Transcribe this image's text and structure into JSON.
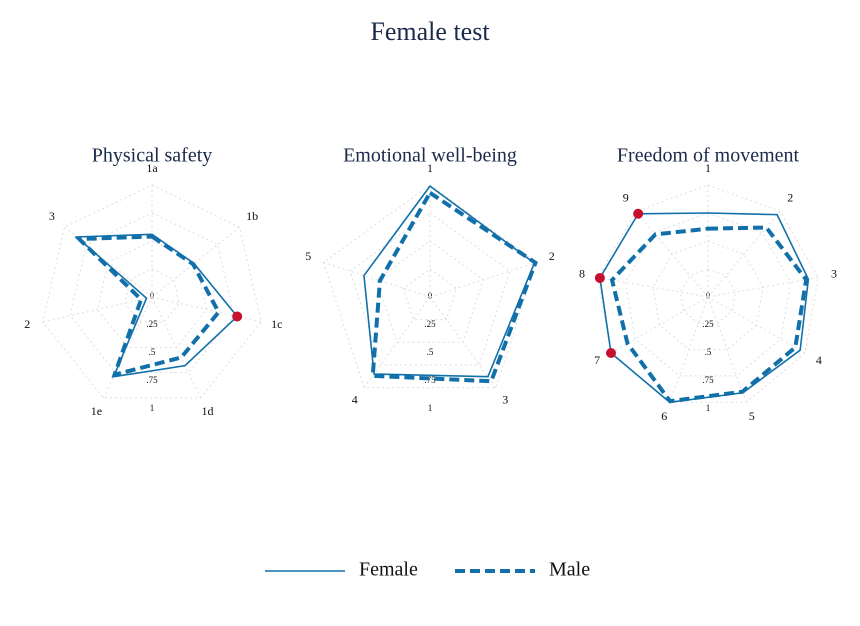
{
  "header": {
    "title": "Female test"
  },
  "chart_data": [
    {
      "type": "radar",
      "title": "Physical safety",
      "categories": [
        "1a",
        "1b",
        "1c",
        "1d",
        "1e",
        "2",
        "3"
      ],
      "rlim": [
        0,
        1
      ],
      "rticks": [
        0,
        {
          "value": 0.25,
          "label": ".25"
        },
        {
          "value": 0.5,
          "label": ".5"
        },
        {
          "value": 0.75,
          "label": ".75"
        },
        1
      ],
      "highlight_color": "#c8102e",
      "series": [
        {
          "name": "Female",
          "color": "#1170aa",
          "style": "solid",
          "values": [
            0.56,
            0.48,
            0.78,
            0.68,
            0.79,
            0.05,
            0.86
          ],
          "highlight": [
            2
          ]
        },
        {
          "name": "Male",
          "color": "#1170aa",
          "style": "dashed",
          "values": [
            0.54,
            0.47,
            0.61,
            0.6,
            0.77,
            0.1,
            0.83
          ]
        }
      ]
    },
    {
      "type": "radar",
      "title": "Emotional well-being",
      "categories": [
        "1",
        "2",
        "3",
        "4",
        "5"
      ],
      "rlim": [
        0,
        1
      ],
      "rticks": [
        0,
        {
          "value": 0.25,
          "label": ".25"
        },
        {
          "value": 0.5,
          "label": ".5"
        },
        {
          "value": 0.75,
          "label": ".75"
        },
        1
      ],
      "highlight_color": "#c8102e",
      "series": [
        {
          "name": "Female",
          "color": "#1170aa",
          "style": "solid",
          "values": [
            0.99,
            0.98,
            0.88,
            0.85,
            0.62
          ],
          "highlight": []
        },
        {
          "name": "Male",
          "color": "#1170aa",
          "style": "dashed",
          "values": [
            0.93,
            0.99,
            0.93,
            0.87,
            0.47
          ]
        }
      ]
    },
    {
      "type": "radar",
      "title": "Freedom of movement",
      "categories": [
        "1",
        "2",
        "3",
        "4",
        "5",
        "6",
        "7",
        "8",
        "9"
      ],
      "rlim": [
        0,
        1
      ],
      "rticks": [
        0,
        {
          "value": 0.25,
          "label": ".25"
        },
        {
          "value": 0.5,
          "label": ".5"
        },
        {
          "value": 0.75,
          "label": ".75"
        },
        1
      ],
      "highlight_color": "#c8102e",
      "series": [
        {
          "name": "Female",
          "color": "#1170aa",
          "style": "solid",
          "values": [
            0.75,
            0.96,
            0.91,
            0.95,
            0.91,
            1.0,
            1.0,
            0.98,
            0.97
          ],
          "highlight": [
            6,
            7,
            8
          ]
        },
        {
          "name": "Male",
          "color": "#1170aa",
          "style": "dashed",
          "values": [
            0.61,
            0.81,
            0.89,
            0.9,
            0.9,
            0.99,
            0.83,
            0.87,
            0.73
          ]
        }
      ]
    }
  ]
}
